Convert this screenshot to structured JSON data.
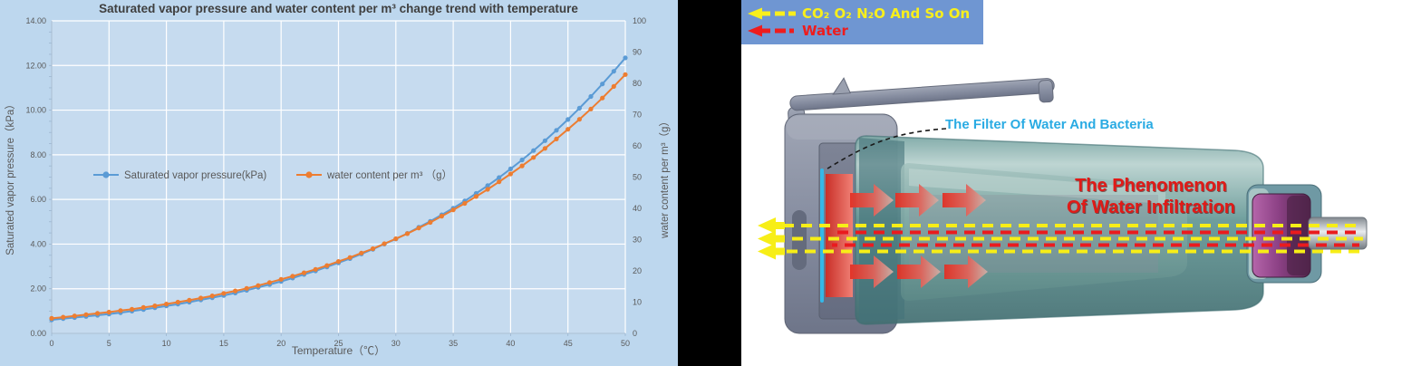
{
  "chart": {
    "title": "Saturated vapor pressure and water content per m³ change trend with temperature",
    "x_axis": {
      "title": "Temperature（℃）",
      "min": 0,
      "max": 50,
      "tick_step": 5
    },
    "left_axis": {
      "title": "Saturated vapor pressure（kPa）",
      "min": 0,
      "max": 14,
      "tick_step": 2
    },
    "right_axis": {
      "title": "water content per m³（g）",
      "min": 0,
      "max": 100,
      "tick_step": 10
    },
    "legend_items": [
      {
        "label": "Saturated vapor pressure(kPa)",
        "color": "#5b9bd5"
      },
      {
        "label": "water content per m³ （g）",
        "color": "#ed7d31"
      }
    ],
    "panel_bg": "#bdd7ee",
    "plot_bg": "#c6dbef",
    "gridline_color": "#ffffff",
    "title_color": "#3f3f3f",
    "text_color": "#595959"
  },
  "chart_data": {
    "type": "line",
    "title": "Saturated vapor pressure and water content per m³ change trend with temperature",
    "xlabel": "Temperature（℃）",
    "ylabel_left": "Saturated vapor pressure（kPa）",
    "ylabel_right": "water content per m³（g）",
    "xlim": [
      0,
      50
    ],
    "ylim_left": [
      0,
      14
    ],
    "ylim_right": [
      0,
      100
    ],
    "grid": true,
    "legend_position": "inside-left",
    "x": [
      0,
      1,
      2,
      3,
      4,
      5,
      6,
      7,
      8,
      9,
      10,
      11,
      12,
      13,
      14,
      15,
      16,
      17,
      18,
      19,
      20,
      21,
      22,
      23,
      24,
      25,
      26,
      27,
      28,
      29,
      30,
      31,
      32,
      33,
      34,
      35,
      36,
      37,
      38,
      39,
      40,
      41,
      42,
      43,
      44,
      45,
      46,
      47,
      48,
      49,
      50
    ],
    "series": [
      {
        "name": "Saturated vapor pressure(kPa)",
        "axis": "left",
        "color": "#5b9bd5",
        "values": [
          0.61,
          0.66,
          0.71,
          0.76,
          0.81,
          0.87,
          0.93,
          1.0,
          1.07,
          1.15,
          1.23,
          1.31,
          1.4,
          1.5,
          1.6,
          1.7,
          1.81,
          1.93,
          2.06,
          2.19,
          2.33,
          2.48,
          2.64,
          2.8,
          2.98,
          3.16,
          3.35,
          3.56,
          3.77,
          4.0,
          4.23,
          4.48,
          4.75,
          5.02,
          5.31,
          5.61,
          5.93,
          6.27,
          6.62,
          6.98,
          7.37,
          7.77,
          8.19,
          8.63,
          9.1,
          9.58,
          10.09,
          10.61,
          11.17,
          11.74,
          12.34
        ]
      },
      {
        "name": "water content per m³ （g）",
        "axis": "right",
        "color": "#ed7d31",
        "values": [
          4.8,
          5.2,
          5.6,
          6.0,
          6.4,
          6.8,
          7.3,
          7.7,
          8.3,
          8.8,
          9.4,
          10.0,
          10.6,
          11.3,
          12.0,
          12.8,
          13.6,
          14.4,
          15.3,
          16.3,
          17.3,
          18.3,
          19.4,
          20.5,
          21.7,
          23.0,
          24.3,
          25.7,
          27.1,
          28.7,
          30.3,
          31.9,
          33.7,
          35.5,
          37.5,
          39.5,
          41.6,
          43.8,
          46.1,
          48.5,
          51.0,
          53.6,
          56.3,
          59.2,
          62.2,
          65.3,
          68.5,
          71.8,
          75.3,
          79.0,
          82.8
        ]
      }
    ]
  },
  "diagram": {
    "legend": {
      "bg": "#6f96d2",
      "items": [
        {
          "label": "CO₂ O₂ N₂O And So On",
          "color": "#f8ef1c",
          "style": "dashed-arrow-left"
        },
        {
          "label": "Water",
          "color": "#ee1c1d",
          "style": "dashed-arrow-left"
        }
      ]
    },
    "filter_label": "The Filter Of Water And Bacteria",
    "phenomenon_line1": "The Phenomenon",
    "phenomenon_line2": "Of Water Infiltration",
    "flow_colors": {
      "gas_dash": "#f7ee17",
      "water_dash": "#ea1b1e"
    }
  }
}
